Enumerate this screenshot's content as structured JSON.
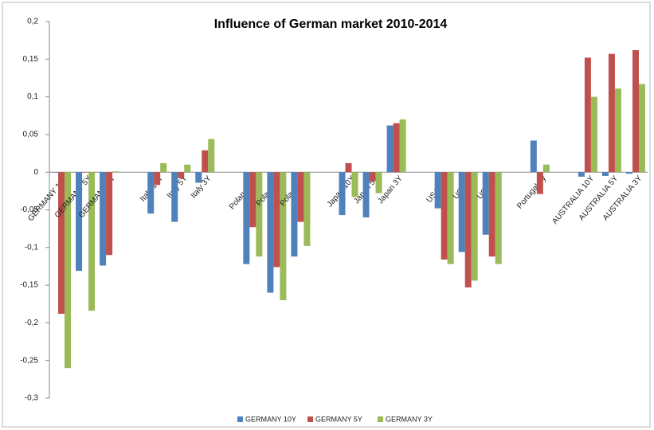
{
  "chart_data": {
    "type": "bar",
    "title": "Influence of German market  2010-2014",
    "categories": [
      "GERMANY 10Y",
      "GERMANY 5Y",
      "GERMANY 3Y",
      null,
      "Italy 10Y",
      "Italy 5Y",
      "Italy 3Y",
      null,
      "Poland 10Y",
      "Poland 5Y",
      "Poland 3Y",
      null,
      "Japan 10Y",
      "Japan 5Y",
      "Japan 3Y",
      null,
      "USA 10Y",
      "USA 5Y",
      "USA 2Y",
      null,
      "Portugal 5y",
      null,
      "AUSTRALIA 10Y",
      "AUSTRALIA 5Y",
      "AUSTRALIA 3Y"
    ],
    "series": [
      {
        "name": "GERMANY 10Y",
        "color": "#4f81bd",
        "values": [
          0,
          -0.131,
          -0.124,
          null,
          -0.055,
          -0.066,
          -0.014,
          null,
          -0.122,
          -0.16,
          -0.112,
          null,
          -0.057,
          -0.06,
          0.062,
          null,
          -0.048,
          -0.106,
          -0.083,
          null,
          0.042,
          null,
          -0.006,
          -0.005,
          -0.002
        ]
      },
      {
        "name": "GERMANY 5Y",
        "color": "#c0504d",
        "values": [
          -0.188,
          0,
          -0.11,
          null,
          -0.017,
          -0.008,
          0.029,
          null,
          -0.073,
          -0.126,
          -0.066,
          null,
          0.012,
          -0.012,
          0.065,
          null,
          -0.116,
          -0.153,
          -0.112,
          null,
          -0.029,
          null,
          0.152,
          0.157,
          0.162
        ]
      },
      {
        "name": "GERMANY 3Y",
        "color": "#9bbb59",
        "values": [
          -0.26,
          -0.184,
          0.001,
          null,
          0.012,
          0.01,
          0.044,
          null,
          -0.112,
          -0.17,
          -0.098,
          null,
          -0.033,
          -0.028,
          0.07,
          null,
          -0.122,
          -0.144,
          -0.122,
          null,
          0.01,
          null,
          0.1,
          0.111,
          0.117
        ]
      }
    ],
    "ylim": [
      -0.3,
      0.2
    ],
    "yticks": [
      {
        "value": -0.3,
        "label": "-0,3"
      },
      {
        "value": -0.25,
        "label": "-0,25"
      },
      {
        "value": -0.2,
        "label": "-0,2"
      },
      {
        "value": -0.15,
        "label": "-0,15"
      },
      {
        "value": -0.1,
        "label": "-0,1"
      },
      {
        "value": -0.05,
        "label": "-0,05"
      },
      0,
      {
        "value": 0.05,
        "label": "0,05"
      },
      {
        "value": 0.1,
        "label": "0,1"
      },
      {
        "value": 0.15,
        "label": "0,15"
      },
      {
        "value": 0.2,
        "label": "0,2"
      }
    ],
    "grid": false,
    "legend": "bottom"
  }
}
